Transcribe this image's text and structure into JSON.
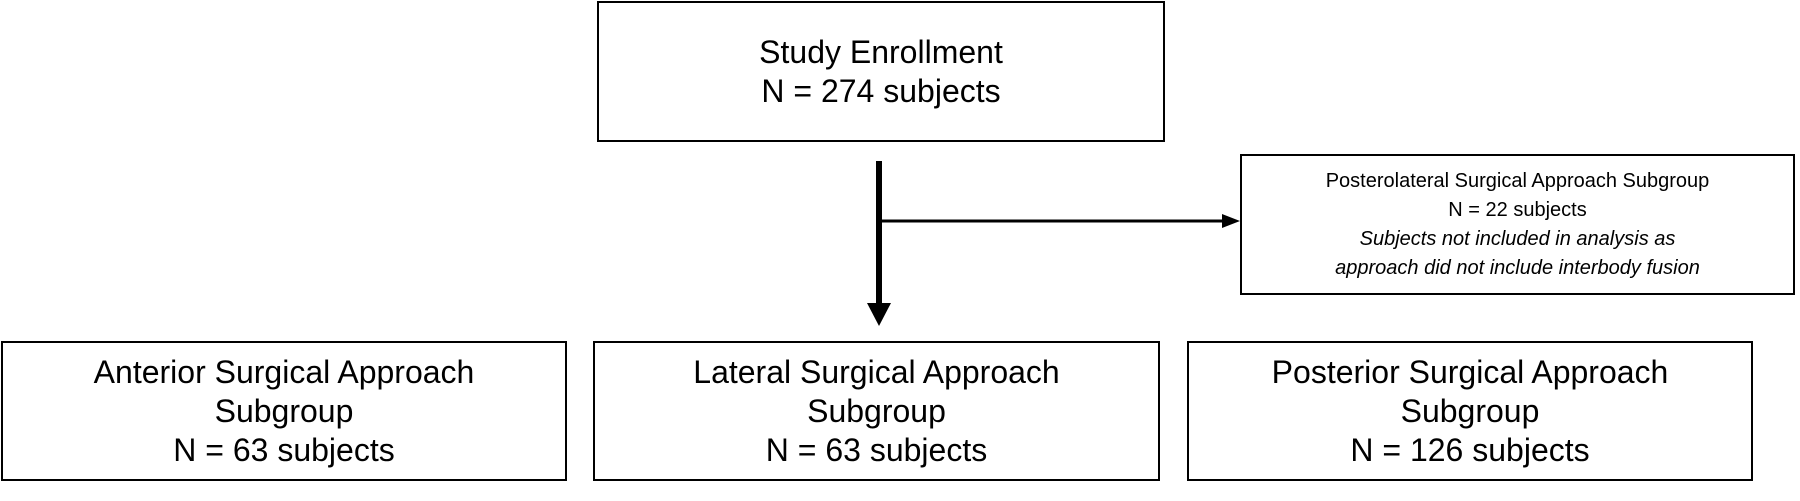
{
  "enrollment": {
    "title": "Study Enrollment",
    "count": "N = 274 subjects"
  },
  "excluded": {
    "title": "Posterolateral Surgical Approach Subgroup",
    "count": "N = 22 subjects",
    "note_line1": "Subjects not included in analysis as",
    "note_line2": "approach did not include interbody fusion"
  },
  "subgroups": [
    {
      "line1": "Anterior Surgical Approach",
      "line2": "Subgroup",
      "count": "N = 63 subjects"
    },
    {
      "line1": "Lateral Surgical Approach",
      "line2": "Subgroup",
      "count": "N = 63 subjects"
    },
    {
      "line1": "Posterior Surgical Approach",
      "line2": "Subgroup",
      "count": "N = 126 subjects"
    }
  ]
}
